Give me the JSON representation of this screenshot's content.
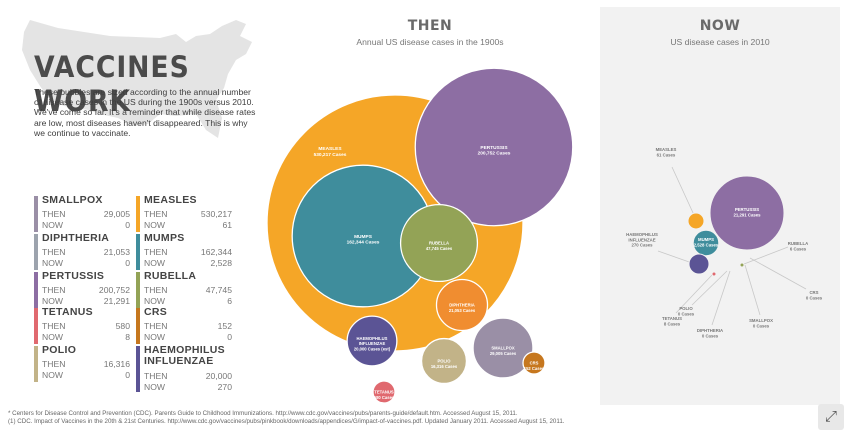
{
  "header": {
    "title": "VACCINES WORK",
    "intro": "These bubbles are sized according to the annual number of disease cases in the US during the 1900s versus 2010. We've come so far. It's a reminder that while disease rates are low, most diseases haven't disappeared. This is why we continue to vaccinate."
  },
  "labels": {
    "then": "THEN",
    "now": "NOW"
  },
  "then_panel": {
    "title": "THEN",
    "subtitle": "Annual US disease cases in the 1900s"
  },
  "now_panel": {
    "title": "NOW",
    "subtitle": "US disease cases in 2010"
  },
  "legend": [
    {
      "name": "SMALLPOX",
      "color": "#9a8fa6",
      "then": "29,005",
      "now": "0"
    },
    {
      "name": "MEASLES",
      "color": "#f5a627",
      "then": "530,217",
      "now": "61"
    },
    {
      "name": "DIPHTHERIA",
      "color": "#9ca3ad",
      "then": "21,053",
      "now": "0"
    },
    {
      "name": "MUMPS",
      "color": "#3f8d9c",
      "then": "162,344",
      "now": "2,528"
    },
    {
      "name": "PERTUSSIS",
      "color": "#8d6ea3",
      "then": "200,752",
      "now": "21,291"
    },
    {
      "name": "RUBELLA",
      "color": "#93a356",
      "then": "47,745",
      "now": "6"
    },
    {
      "name": "TETANUS",
      "color": "#e0696f",
      "then": "580",
      "now": "8"
    },
    {
      "name": "CRS",
      "color": "#c6771e",
      "then": "152",
      "now": "0"
    },
    {
      "name": "POLIO",
      "color": "#c2b388",
      "then": "16,316",
      "now": "0"
    },
    {
      "name": "HAEMOPHILUS INFLUENZAE",
      "name_line1": "HAEMOPHILUS",
      "name_line2": "INFLUENZAE",
      "color": "#5b5495",
      "then": "20,000",
      "now": "270"
    }
  ],
  "chart_data": [
    {
      "type": "bubble",
      "title": "THEN",
      "subtitle": "Annual US disease cases in the 1900s",
      "series": [
        {
          "name": "MEASLES",
          "value": 530217,
          "label": "MEASLES",
          "sublabel": "530,217 Cases",
          "color": "#f5a627"
        },
        {
          "name": "PERTUSSIS",
          "value": 200752,
          "label": "PERTUSSIS",
          "sublabel": "200,752 Cases",
          "color": "#8d6ea3"
        },
        {
          "name": "MUMPS",
          "value": 162344,
          "label": "MUMPS",
          "sublabel": "162,344 Cases",
          "color": "#3f8d9c"
        },
        {
          "name": "RUBELLA",
          "value": 47745,
          "label": "RUBELLA",
          "sublabel": "47,745 Cases",
          "color": "#93a356"
        },
        {
          "name": "SMALLPOX",
          "value": 29005,
          "label": "SMALLPOX",
          "sublabel": "29,005 Cases",
          "color": "#9a8fa6"
        },
        {
          "name": "DIPHTHERIA",
          "value": 21053,
          "label": "DIPHTHERIA",
          "sublabel": "21,053 Cases",
          "color": "#f08d30"
        },
        {
          "name": "HAEMOPHILUS INFLUENZAE",
          "value": 20000,
          "label": "HAEMOPHILUS INFLUENZAE",
          "sublabel": "20,000 Cases (est)",
          "color": "#5b5495"
        },
        {
          "name": "POLIO",
          "value": 16316,
          "label": "POLIO",
          "sublabel": "16,316 Cases",
          "color": "#c2b388"
        },
        {
          "name": "TETANUS",
          "value": 580,
          "label": "TETANUS",
          "sublabel": "580 Cases",
          "color": "#e0696f"
        },
        {
          "name": "CRS",
          "value": 152,
          "label": "CRS",
          "sublabel": "152 Cases",
          "color": "#c6771e"
        }
      ]
    },
    {
      "type": "bubble",
      "title": "NOW",
      "subtitle": "US disease cases in 2010",
      "series": [
        {
          "name": "PERTUSSIS",
          "value": 21291,
          "label": "PERTUSSIS",
          "sublabel": "21,291 Cases",
          "color": "#8d6ea3"
        },
        {
          "name": "MUMPS",
          "value": 2528,
          "label": "MUMPS",
          "sublabel": "2,528 Cases",
          "color": "#3f8d9c"
        },
        {
          "name": "HAEMOPHILUS INFLUENZAE",
          "value": 270,
          "label": "HAEMOPHILUS INFLUENZAE",
          "sublabel": "270 Cases",
          "color": "#5b5495"
        },
        {
          "name": "MEASLES",
          "value": 61,
          "label": "MEASLES",
          "sublabel": "61 Cases",
          "color": "#f5a627"
        },
        {
          "name": "TETANUS",
          "value": 8,
          "label": "TETANUS",
          "sublabel": "8 Cases",
          "color": "#e0696f"
        },
        {
          "name": "RUBELLA",
          "value": 6,
          "label": "RUBELLA",
          "sublabel": "6 Cases",
          "color": "#93a356"
        },
        {
          "name": "CRS",
          "value": 0,
          "label": "CRS",
          "sublabel": "0 Cases",
          "color": "#c6771e"
        },
        {
          "name": "SMALLPOX",
          "value": 0,
          "label": "SMALLPOX",
          "sublabel": "0 Cases",
          "color": "#9a8fa6"
        },
        {
          "name": "DIPHTHERIA",
          "value": 0,
          "label": "DIPHTHERIA",
          "sublabel": "0 Cases",
          "color": "#9ca3ad"
        },
        {
          "name": "POLIO",
          "value": 0,
          "label": "POLIO",
          "sublabel": "0 Cases",
          "color": "#c2b388"
        }
      ]
    }
  ],
  "sources": [
    "* Centers for Disease Control and Prevention (CDC). Parents Guide to Childhood Immunizations. http://www.cdc.gov/vaccines/pubs/parents-guide/default.htm. Accessed August 15, 2011.",
    "(1) CDC. Impact of Vaccines in the 20th & 21st Centuries. http://www.cdc.gov/vaccines/pubs/pinkbook/downloads/appendices/G/impact-of-vaccines.pdf. Updated January 2011. Accessed August 15, 2011."
  ],
  "icons": {
    "expand": "expand-icon",
    "map": "us-map-icon"
  }
}
